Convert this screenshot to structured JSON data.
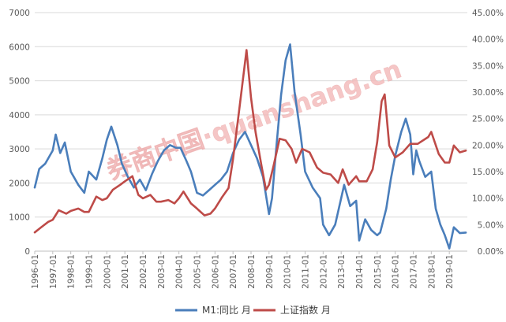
{
  "chart_data": {
    "type": "line",
    "x_ticks": [
      "1996-01",
      "1997-01",
      "1998-01",
      "1999-01",
      "2000-01",
      "2001-01",
      "2002-01",
      "2003-01",
      "2004-01",
      "2005-01",
      "2006-01",
      "2007-01",
      "2008-01",
      "2009-01",
      "2010-01",
      "2011-01",
      "2012-01",
      "2013-01",
      "2014-01",
      "2015-01",
      "2016-01",
      "2017-01",
      "2018-01",
      "2019-01"
    ],
    "left_axis": {
      "ticks": [
        "0",
        "1000",
        "2000",
        "3000",
        "4000",
        "5000",
        "6000",
        "7000"
      ],
      "ylim": [
        0,
        7000
      ]
    },
    "right_axis": {
      "ticks": [
        "0.00%",
        "5.00%",
        "10.00%",
        "15.00%",
        "20.00%",
        "25.00%",
        "30.00%",
        "35.00%",
        "40.00%",
        "45.00%"
      ],
      "ylim": [
        0,
        45
      ]
    },
    "grid": "horizontal",
    "legend_position": "bottom",
    "series": [
      {
        "name": "M1:同比 月",
        "axis": "right",
        "color": "#4a7ebb",
        "points": [
          [
            "1996-01",
            12.0
          ],
          [
            "1996-04",
            15.5
          ],
          [
            "1996-08",
            16.5
          ],
          [
            "1997-01",
            19.0
          ],
          [
            "1997-03",
            22.0
          ],
          [
            "1997-06",
            18.5
          ],
          [
            "1997-09",
            20.5
          ],
          [
            "1998-01",
            15.0
          ],
          [
            "1998-06",
            12.5
          ],
          [
            "1998-10",
            11.0
          ],
          [
            "1999-01",
            15.0
          ],
          [
            "1999-06",
            13.5
          ],
          [
            "1999-10",
            17.5
          ],
          [
            "2000-01",
            21.0
          ],
          [
            "2000-04",
            23.5
          ],
          [
            "2000-08",
            20.0
          ],
          [
            "2000-11",
            16.5
          ],
          [
            "2001-03",
            14.0
          ],
          [
            "2001-07",
            12.0
          ],
          [
            "2001-11",
            13.5
          ],
          [
            "2002-03",
            11.5
          ],
          [
            "2002-07",
            14.5
          ],
          [
            "2002-11",
            17.0
          ],
          [
            "2003-03",
            19.0
          ],
          [
            "2003-07",
            20.0
          ],
          [
            "2003-11",
            19.5
          ],
          [
            "2004-02",
            19.5
          ],
          [
            "2004-06",
            17.0
          ],
          [
            "2004-09",
            15.0
          ],
          [
            "2005-01",
            11.0
          ],
          [
            "2005-05",
            10.5
          ],
          [
            "2005-09",
            11.5
          ],
          [
            "2006-01",
            12.5
          ],
          [
            "2006-05",
            13.5
          ],
          [
            "2006-09",
            15.0
          ],
          [
            "2007-01",
            18.5
          ],
          [
            "2007-05",
            21.0
          ],
          [
            "2007-09",
            22.5
          ],
          [
            "2008-01",
            20.0
          ],
          [
            "2008-05",
            17.5
          ],
          [
            "2008-09",
            14.0
          ],
          [
            "2009-01",
            7.0
          ],
          [
            "2009-03",
            10.0
          ],
          [
            "2009-06",
            20.0
          ],
          [
            "2009-09",
            29.5
          ],
          [
            "2009-12",
            36.0
          ],
          [
            "2010-03",
            39.0
          ],
          [
            "2010-06",
            30.0
          ],
          [
            "2010-10",
            22.0
          ],
          [
            "2011-01",
            15.0
          ],
          [
            "2011-06",
            12.0
          ],
          [
            "2011-11",
            10.0
          ],
          [
            "2012-01",
            5.0
          ],
          [
            "2012-05",
            3.0
          ],
          [
            "2012-09",
            5.0
          ],
          [
            "2013-01",
            10.0
          ],
          [
            "2013-03",
            12.5
          ],
          [
            "2013-07",
            8.5
          ],
          [
            "2013-11",
            9.5
          ],
          [
            "2014-01",
            2.0
          ],
          [
            "2014-05",
            6.0
          ],
          [
            "2014-09",
            4.0
          ],
          [
            "2015-01",
            3.0
          ],
          [
            "2015-03",
            3.5
          ],
          [
            "2015-07",
            8.0
          ],
          [
            "2015-10",
            13.5
          ],
          [
            "2016-01",
            18.0
          ],
          [
            "2016-05",
            22.5
          ],
          [
            "2016-08",
            25.0
          ],
          [
            "2016-11",
            22.0
          ],
          [
            "2017-01",
            14.5
          ],
          [
            "2017-03",
            19.0
          ],
          [
            "2017-05",
            17.0
          ],
          [
            "2017-09",
            14.0
          ],
          [
            "2018-01",
            15.0
          ],
          [
            "2018-04",
            8.0
          ],
          [
            "2018-07",
            5.0
          ],
          [
            "2018-10",
            3.0
          ],
          [
            "2019-01",
            0.5
          ],
          [
            "2019-04",
            4.5
          ],
          [
            "2019-08",
            3.4
          ],
          [
            "2019-12",
            3.5
          ]
        ]
      },
      {
        "name": "上证指数 月",
        "axis": "left",
        "color": "#be4b48",
        "points": [
          [
            "1996-01",
            550
          ],
          [
            "1996-05",
            690
          ],
          [
            "1996-10",
            860
          ],
          [
            "1997-01",
            920
          ],
          [
            "1997-05",
            1200
          ],
          [
            "1997-10",
            1100
          ],
          [
            "1998-01",
            1180
          ],
          [
            "1998-06",
            1250
          ],
          [
            "1998-10",
            1150
          ],
          [
            "1999-01",
            1150
          ],
          [
            "1999-06",
            1600
          ],
          [
            "1999-10",
            1500
          ],
          [
            "2000-01",
            1550
          ],
          [
            "2000-05",
            1800
          ],
          [
            "2000-10",
            1950
          ],
          [
            "2001-01",
            2050
          ],
          [
            "2001-06",
            2200
          ],
          [
            "2001-10",
            1650
          ],
          [
            "2002-01",
            1550
          ],
          [
            "2002-06",
            1650
          ],
          [
            "2002-10",
            1450
          ],
          [
            "2003-01",
            1450
          ],
          [
            "2003-06",
            1500
          ],
          [
            "2003-10",
            1400
          ],
          [
            "2004-01",
            1550
          ],
          [
            "2004-04",
            1750
          ],
          [
            "2004-09",
            1400
          ],
          [
            "2005-01",
            1250
          ],
          [
            "2005-06",
            1050
          ],
          [
            "2005-10",
            1100
          ],
          [
            "2006-01",
            1250
          ],
          [
            "2006-06",
            1600
          ],
          [
            "2006-10",
            1850
          ],
          [
            "2007-01",
            2700
          ],
          [
            "2007-05",
            4100
          ],
          [
            "2007-10",
            5900
          ],
          [
            "2008-01",
            4500
          ],
          [
            "2008-04",
            3500
          ],
          [
            "2008-08",
            2500
          ],
          [
            "2008-11",
            1800
          ],
          [
            "2009-01",
            1950
          ],
          [
            "2009-04",
            2500
          ],
          [
            "2009-08",
            3300
          ],
          [
            "2009-12",
            3250
          ],
          [
            "2010-04",
            3000
          ],
          [
            "2010-07",
            2600
          ],
          [
            "2010-11",
            3000
          ],
          [
            "2011-04",
            2900
          ],
          [
            "2011-09",
            2450
          ],
          [
            "2012-01",
            2300
          ],
          [
            "2012-06",
            2250
          ],
          [
            "2012-11",
            2000
          ],
          [
            "2013-02",
            2400
          ],
          [
            "2013-06",
            1950
          ],
          [
            "2013-11",
            2200
          ],
          [
            "2014-01",
            2050
          ],
          [
            "2014-06",
            2050
          ],
          [
            "2014-10",
            2400
          ],
          [
            "2015-01",
            3200
          ],
          [
            "2015-04",
            4400
          ],
          [
            "2015-06",
            4600
          ],
          [
            "2015-09",
            3100
          ],
          [
            "2016-01",
            2750
          ],
          [
            "2016-06",
            2900
          ],
          [
            "2016-11",
            3150
          ],
          [
            "2017-04",
            3150
          ],
          [
            "2017-11",
            3350
          ],
          [
            "2018-01",
            3500
          ],
          [
            "2018-06",
            2850
          ],
          [
            "2018-10",
            2600
          ],
          [
            "2019-01",
            2600
          ],
          [
            "2019-04",
            3100
          ],
          [
            "2019-08",
            2900
          ],
          [
            "2019-12",
            2950
          ]
        ]
      }
    ]
  },
  "legend": {
    "m1_label": "M1:同比 月",
    "index_label": "上证指数 月"
  },
  "watermark": "券商中国·quanshang.cn"
}
